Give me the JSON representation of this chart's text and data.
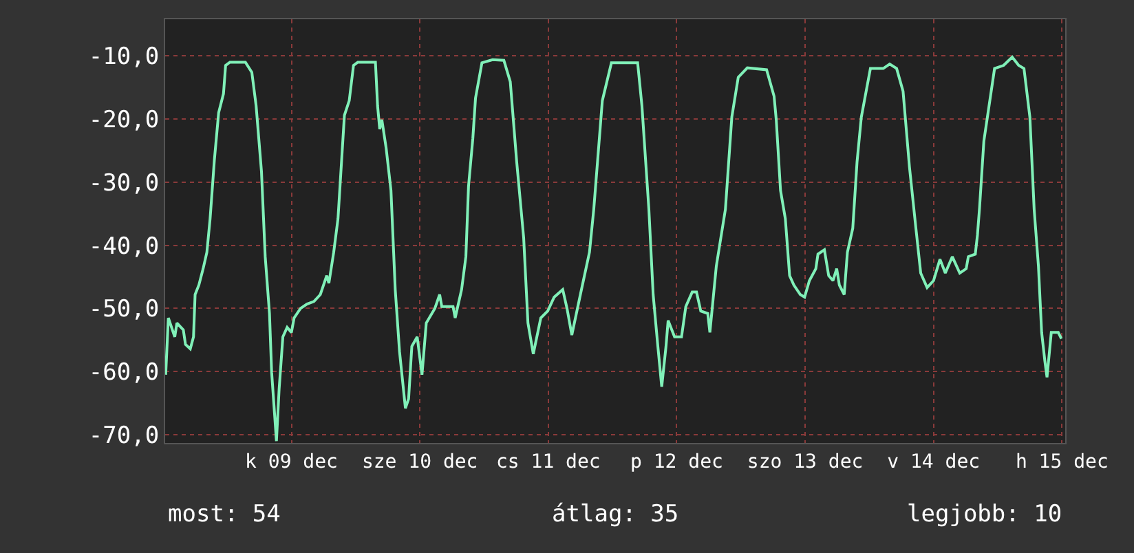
{
  "chart_data": {
    "type": "line",
    "annotations": [
      "most: 54",
      "átlag: 35",
      "legjobb: 10"
    ],
    "x": [
      "--12-08T12:30",
      "--12-08T13:00",
      "--12-08T14:12",
      "--12-08T14:36",
      "--12-08T15:48",
      "--12-08T16:12",
      "--12-08T17:06",
      "--12-08T17:42",
      "--12-08T18:00",
      "--12-08T18:42",
      "--12-08T19:30",
      "--12-08T20:12",
      "--12-08T20:48",
      "--12-08T21:36",
      "--12-08T22:24",
      "--12-08T23:18",
      "--12-08T23:42",
      "--12-09T00:30",
      "--12-09T03:24",
      "--12-09T04:36",
      "--12-09T05:24",
      "--12-09T06:24",
      "--12-09T07:06",
      "--12-09T07:54",
      "--12-09T08:18",
      "--12-09T09:12",
      "--12-09T09:42",
      "--12-09T10:24",
      "--12-09T11:12",
      "--12-09T12:00",
      "--12-09T12:30",
      "--12-09T13:42",
      "--12-09T14:54",
      "--12-09T16:12",
      "--12-09T17:24",
      "--12-09T18:36",
      "--12-09T19:00",
      "--12-09T19:54",
      "--12-09T20:42",
      "--12-09T21:54",
      "--12-09T22:48",
      "--12-09T23:36",
      "--12-10T00:24",
      "--12-10T03:42",
      "--12-10T04:06",
      "--12-10T04:30",
      "--12-10T04:54",
      "--12-10T05:42",
      "--12-10T06:36",
      "--12-10T07:24",
      "--12-10T08:12",
      "--12-10T09:18",
      "--12-10T09:54",
      "--12-10T10:30",
      "--12-10T11:30",
      "--12-10T12:24",
      "--12-10T13:12",
      "--12-10T14:48",
      "--12-10T15:42",
      "--12-10T16:06",
      "--12-10T18:12",
      "--12-10T18:36",
      "--12-10T19:48",
      "--12-10T20:36",
      "--12-10T21:06",
      "--12-10T21:54",
      "--12-10T22:24",
      "--12-10T23:36",
      "--12-11T01:36",
      "--12-11T03:42",
      "--12-11T04:54",
      "--12-11T06:06",
      "--12-11T07:24",
      "--12-11T08:12",
      "--12-11T09:12",
      "--12-11T10:36",
      "--12-11T11:54",
      "--12-11T13:06",
      "--12-11T14:42",
      "--12-11T15:30",
      "--12-11T16:24",
      "--12-11T18:00",
      "--12-11T19:42",
      "--12-11T20:30",
      "--12-11T22:06",
      "--12-11T23:48",
      "--12-12T04:42",
      "--12-12T05:30",
      "--12-12T06:48",
      "--12-12T07:36",
      "--12-12T08:24",
      "--12-12T09:12",
      "--12-12T10:00",
      "--12-12T10:24",
      "--12-12T11:36",
      "--12-12T12:54",
      "--12-12T13:42",
      "--12-12T14:54",
      "--12-12T15:42",
      "--12-12T16:30",
      "--12-12T17:48",
      "--12-12T18:12",
      "--12-12T19:24",
      "--12-12T21:06",
      "--12-12T22:18",
      "--12-12T23:30",
      "--12-13T01:12",
      "--12-13T04:48",
      "--12-13T06:12",
      "--12-13T06:36",
      "--12-13T07:24",
      "--12-13T08:18",
      "--12-13T09:06",
      "--12-13T09:54",
      "--12-13T11:06",
      "--12-13T11:54",
      "--12-13T12:48",
      "--12-13T14:00",
      "--12-13T14:24",
      "--12-13T15:36",
      "--12-13T16:24",
      "--12-13T17:12",
      "--12-13T17:54",
      "--12-13T18:24",
      "--12-13T19:18",
      "--12-13T19:54",
      "--12-13T20:54",
      "--12-13T21:42",
      "--12-13T22:30",
      "--12-14T00:12",
      "--12-14T02:36",
      "--12-14T03:48",
      "--12-14T05:06",
      "--12-14T06:18",
      "--12-14T07:30",
      "--12-14T08:42",
      "--12-14T09:36",
      "--12-14T10:48",
      "--12-14T12:00",
      "--12-14T13:12",
      "--12-14T14:12",
      "--12-14T15:30",
      "--12-14T16:54",
      "--12-14T18:06",
      "--12-14T18:30",
      "--12-14T19:48",
      "--12-14T20:12",
      "--12-14T20:36",
      "--12-14T21:24",
      "--12-14T23:24",
      "--12-15T01:06",
      "--12-15T02:42",
      "--12-15T03:54",
      "--12-15T04:54",
      "--12-15T06:00",
      "--12-15T06:48",
      "--12-15T07:36",
      "--12-15T08:12",
      "--12-15T08:48",
      "--12-15T09:12",
      "--12-15T10:00",
      "--12-15T11:18",
      "--12-15T11:54"
    ],
    "series": [
      {
        "color": "#80f0b8",
        "values": [
          -60.5,
          -51.5,
          -54.5,
          -52.3,
          -53.4,
          -55.7,
          -56.4,
          -54.5,
          -47.8,
          -46.3,
          -43.7,
          -41.1,
          -35.8,
          -26.5,
          -19,
          -16,
          -11.5,
          -11,
          -11,
          -12.6,
          -17.9,
          -28.3,
          -41.8,
          -50.8,
          -60.1,
          -71,
          -62.8,
          -54.5,
          -53,
          -53.8,
          -51.5,
          -50,
          -49.3,
          -48.9,
          -47.8,
          -44.8,
          -46,
          -41.1,
          -35.8,
          -19.4,
          -17.1,
          -11.5,
          -11,
          -11,
          -17.9,
          -21.6,
          -20.1,
          -24.6,
          -31.3,
          -47,
          -56.8,
          -65.8,
          -64.3,
          -56,
          -54.5,
          -60.5,
          -52.3,
          -50,
          -47.8,
          -49.7,
          -49.7,
          -51.5,
          -47,
          -41.8,
          -30.6,
          -23.1,
          -16.7,
          -11.1,
          -10.6,
          -10.7,
          -14.1,
          -26.8,
          -38.8,
          -52.3,
          -57.2,
          -51.5,
          -50.4,
          -48.2,
          -47,
          -50,
          -54.2,
          -47.8,
          -41.1,
          -34.3,
          -17.1,
          -11.1,
          -11.1,
          -17.9,
          -34.3,
          -47.8,
          -55.3,
          -62.4,
          -56,
          -51.9,
          -54.5,
          -54.5,
          -49.7,
          -47.4,
          -47.4,
          -50.4,
          -50.8,
          -53.8,
          -43.3,
          -34.3,
          -19.7,
          -13.4,
          -11.9,
          -12.2,
          -16.4,
          -20.1,
          -31.3,
          -35.8,
          -44.8,
          -46.3,
          -47.8,
          -48.2,
          -45.6,
          -43.7,
          -41.4,
          -40.7,
          -44.8,
          -45.6,
          -43.7,
          -46.3,
          -47.8,
          -41.1,
          -37.3,
          -26.8,
          -19.7,
          -12,
          -12,
          -11.3,
          -12,
          -15.6,
          -27.6,
          -37.3,
          -44.4,
          -46.7,
          -45.6,
          -42.2,
          -44.4,
          -41.8,
          -44.4,
          -43.7,
          -41.8,
          -41.4,
          -38.4,
          -34,
          -23.5,
          -12,
          -11.5,
          -10.2,
          -11.5,
          -12,
          -19.7,
          -34.3,
          -43.3,
          -53.8,
          -58.3,
          -60.9,
          -53.8,
          -53.8,
          -54.8
        ]
      }
    ],
    "xlim": [
      "--12-08T12:24",
      "--12-15T12:36"
    ],
    "xticks": [
      {
        "value": "--12-09T12:00",
        "label": "k 09 dec"
      },
      {
        "value": "--12-10T12:00",
        "label": "sze 10 dec"
      },
      {
        "value": "--12-11T12:00",
        "label": "cs 11 dec"
      },
      {
        "value": "--12-12T12:00",
        "label": "p 12 dec"
      },
      {
        "value": "--12-13T12:00",
        "label": "szo 13 dec"
      },
      {
        "value": "--12-14T12:00",
        "label": "v 14 dec"
      },
      {
        "value": "--12-15T12:00",
        "label": "h 15 dec"
      }
    ],
    "ylim": [
      -71.3,
      -4.2
    ],
    "yticks": [
      {
        "value": -70,
        "label": "-70,0"
      },
      {
        "value": -60,
        "label": "-60,0"
      },
      {
        "value": -50,
        "label": "-50,0"
      },
      {
        "value": -40,
        "label": "-40,0"
      },
      {
        "value": -30,
        "label": "-30,0"
      },
      {
        "value": -20,
        "label": "-20,0"
      },
      {
        "value": -10,
        "label": "-10,0"
      }
    ],
    "grid": true,
    "marker": "none",
    "line_style": "solid"
  }
}
